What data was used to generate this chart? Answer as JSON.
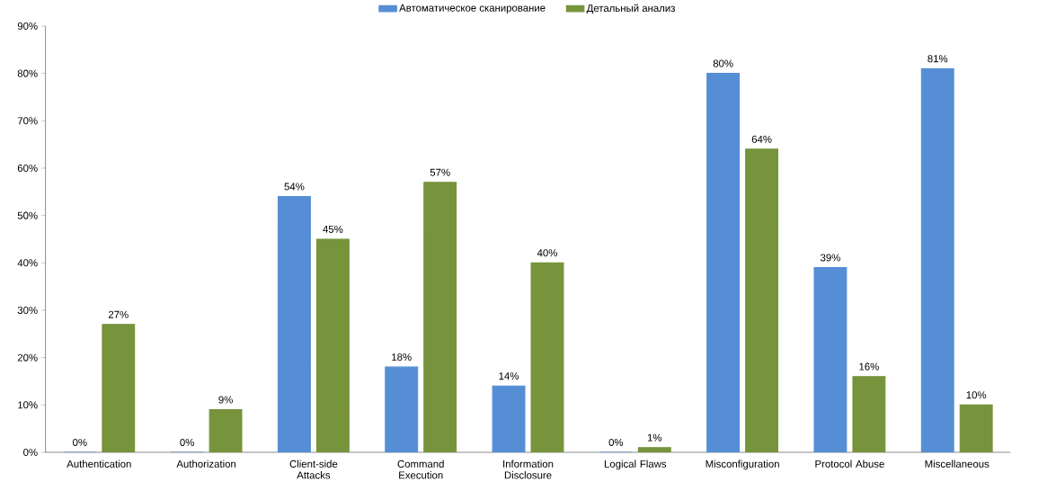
{
  "chart_data": {
    "type": "bar",
    "categories": [
      "Authentication",
      "Authorization",
      "Client-side Attacks",
      "Command Execution",
      "Information Disclosure",
      "Logical Flaws",
      "Misconfiguration",
      "Protocol Abuse",
      "Miscellaneous"
    ],
    "series": [
      {
        "name": "Автоматическое сканирование",
        "color": "#558ed5",
        "values": [
          0,
          0,
          54,
          18,
          14,
          0,
          80,
          39,
          81
        ],
        "value_labels": [
          "0%",
          "0%",
          "54%",
          "18%",
          "14%",
          "0%",
          "80%",
          "39%",
          "81%"
        ]
      },
      {
        "name": "Детальный анализ",
        "color": "#77933c",
        "values": [
          27,
          9,
          45,
          57,
          40,
          1,
          64,
          16,
          10
        ],
        "value_labels": [
          "27%",
          "9%",
          "45%",
          "57%",
          "40%",
          "1%",
          "64%",
          "16%",
          "10%"
        ]
      }
    ],
    "ylim": [
      0,
      90
    ],
    "yticks": [
      {
        "value": 0,
        "label": "0%"
      },
      {
        "value": 10,
        "label": "10%"
      },
      {
        "value": 20,
        "label": "20%"
      },
      {
        "value": 30,
        "label": "30%"
      },
      {
        "value": 40,
        "label": "40%"
      },
      {
        "value": 50,
        "label": "50%"
      },
      {
        "value": 60,
        "label": "60%"
      },
      {
        "value": 70,
        "label": "70%"
      },
      {
        "value": 80,
        "label": "80%"
      },
      {
        "value": 90,
        "label": "90%"
      }
    ],
    "legend": "top",
    "grid": false
  }
}
